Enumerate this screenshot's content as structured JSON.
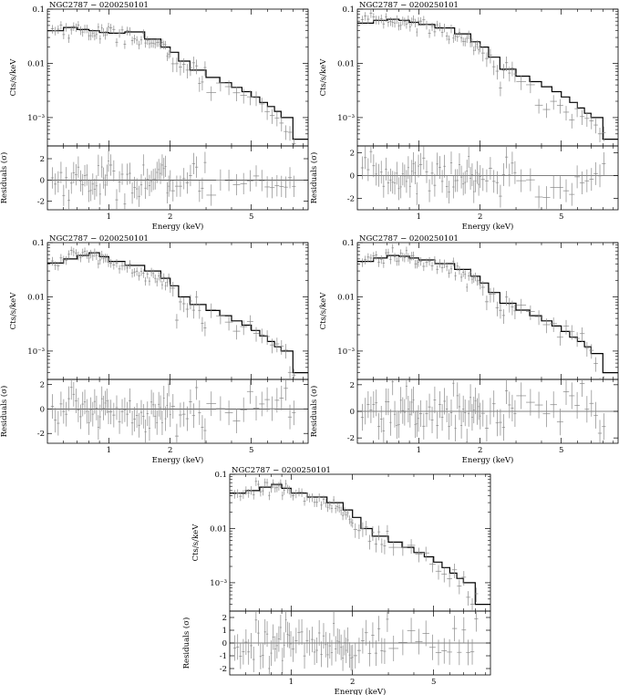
{
  "figure": {
    "panel_title": "NGC2787 − 0200250101",
    "xlabel": "Energy (keV)",
    "ylabel_top": "Cts/s/keV",
    "ylabel_bottom": "Residuals (σ)",
    "data_color": "#888888",
    "model_color": "#000000"
  },
  "chart_data": [
    {
      "type": "line",
      "title": "NGC2787 − 0200250101",
      "xlabel": "Energy (keV)",
      "ylabel": "Cts/s/keV",
      "xscale": "log",
      "yscale": "log",
      "xlim": [
        0.5,
        9.5
      ],
      "ylim": [
        0.0003,
        0.1
      ],
      "xticks": [
        1,
        2,
        5
      ],
      "yticks": [
        "0.1",
        "0.01",
        "10⁻³"
      ],
      "model": {
        "x": [
          0.5,
          0.6,
          0.7,
          0.8,
          0.9,
          1.0,
          1.2,
          1.5,
          1.8,
          2.0,
          2.2,
          2.5,
          3.0,
          3.5,
          4.0,
          4.5,
          5.0,
          5.5,
          6.0,
          6.5,
          7.0,
          8.0,
          9.5
        ],
        "y": [
          0.04,
          0.046,
          0.042,
          0.04,
          0.037,
          0.036,
          0.038,
          0.028,
          0.02,
          0.016,
          0.011,
          0.0075,
          0.0055,
          0.0044,
          0.0036,
          0.003,
          0.0024,
          0.0019,
          0.0016,
          0.0013,
          0.001,
          0.0004,
          0.0004
        ]
      },
      "residuals": {
        "ylabel": "Residuals (σ)",
        "ylim": [
          -2.8,
          3.2
        ],
        "yticks": [
          -2,
          0,
          2
        ]
      }
    },
    {
      "type": "line",
      "title": "NGC2787 − 0200250101",
      "xlabel": "Energy (keV)",
      "ylabel": "Cts/s/keV",
      "xscale": "log",
      "yscale": "log",
      "xlim": [
        0.5,
        9.5
      ],
      "ylim": [
        0.0003,
        0.1
      ],
      "xticks": [
        1,
        2,
        5
      ],
      "yticks": [
        "0.1",
        "0.01",
        "10⁻³"
      ],
      "model": {
        "x": [
          0.5,
          0.6,
          0.7,
          0.8,
          0.9,
          1.0,
          1.2,
          1.5,
          1.8,
          2.0,
          2.2,
          2.5,
          3.0,
          3.5,
          4.0,
          4.5,
          5.0,
          5.5,
          6.0,
          6.5,
          7.0,
          8.0,
          9.5
        ],
        "y": [
          0.055,
          0.062,
          0.065,
          0.062,
          0.057,
          0.052,
          0.045,
          0.035,
          0.025,
          0.02,
          0.013,
          0.0078,
          0.0058,
          0.0046,
          0.0037,
          0.003,
          0.0024,
          0.0019,
          0.0015,
          0.0012,
          0.001,
          0.0004,
          0.0004
        ]
      },
      "residuals": {
        "ylabel": "Residuals (σ)",
        "ylim": [
          -3.0,
          2.6
        ],
        "yticks": [
          -2,
          0,
          2
        ]
      }
    },
    {
      "type": "line",
      "title": "NGC2787 − 0200250101",
      "xlabel": "Energy (keV)",
      "ylabel": "Cts/s/keV",
      "xscale": "log",
      "yscale": "log",
      "xlim": [
        0.5,
        9.5
      ],
      "ylim": [
        0.0003,
        0.1
      ],
      "xticks": [
        1,
        2,
        5
      ],
      "yticks": [
        "0.1",
        "0.01",
        "10⁻³"
      ],
      "model": {
        "x": [
          0.5,
          0.6,
          0.7,
          0.8,
          0.9,
          1.0,
          1.2,
          1.5,
          1.8,
          2.0,
          2.2,
          2.5,
          3.0,
          3.5,
          4.0,
          4.5,
          5.0,
          5.5,
          6.0,
          6.5,
          7.0,
          8.0,
          9.5
        ],
        "y": [
          0.042,
          0.05,
          0.058,
          0.065,
          0.055,
          0.045,
          0.038,
          0.03,
          0.022,
          0.016,
          0.01,
          0.0072,
          0.0056,
          0.0045,
          0.0036,
          0.003,
          0.0024,
          0.0019,
          0.0015,
          0.0012,
          0.001,
          0.0004,
          0.0004
        ]
      },
      "residuals": {
        "ylabel": "Residuals (σ)",
        "ylim": [
          -2.8,
          2.4
        ],
        "yticks": [
          -2,
          0,
          2
        ]
      }
    },
    {
      "type": "line",
      "title": "NGC2787 − 0200250101",
      "xlabel": "Energy (keV)",
      "ylabel": "Cts/s/keV",
      "xscale": "log",
      "yscale": "log",
      "xlim": [
        0.5,
        9.5
      ],
      "ylim": [
        0.0003,
        0.1
      ],
      "xticks": [
        1,
        2,
        5
      ],
      "yticks": [
        "0.1",
        "0.01",
        "10⁻³"
      ],
      "model": {
        "x": [
          0.5,
          0.6,
          0.7,
          0.8,
          0.9,
          1.0,
          1.2,
          1.5,
          1.8,
          2.0,
          2.2,
          2.5,
          3.0,
          3.5,
          4.0,
          4.5,
          5.0,
          5.5,
          6.0,
          6.5,
          7.0,
          8.0,
          9.5
        ],
        "y": [
          0.045,
          0.052,
          0.058,
          0.056,
          0.052,
          0.048,
          0.041,
          0.032,
          0.024,
          0.018,
          0.012,
          0.0076,
          0.0057,
          0.0045,
          0.0036,
          0.0029,
          0.0023,
          0.0018,
          0.0015,
          0.0012,
          0.0009,
          0.0004,
          0.0004
        ]
      },
      "residuals": {
        "ylabel": "Residuals (σ)",
        "ylim": [
          -2.4,
          2.4
        ],
        "yticks": [
          -2,
          0,
          2
        ]
      }
    },
    {
      "type": "line",
      "title": "NGC2787 − 0200250101",
      "xlabel": "Energy (keV)",
      "ylabel": "Cts/s/keV",
      "xscale": "log",
      "yscale": "log",
      "xlim": [
        0.5,
        9.5
      ],
      "ylim": [
        0.0003,
        0.1
      ],
      "xticks": [
        1,
        2,
        5
      ],
      "yticks": [
        "0.1",
        "0.01",
        "10⁻³"
      ],
      "model": {
        "x": [
          0.5,
          0.6,
          0.7,
          0.8,
          0.9,
          1.0,
          1.2,
          1.5,
          1.8,
          2.0,
          2.2,
          2.5,
          3.0,
          3.5,
          4.0,
          4.5,
          5.0,
          5.5,
          6.0,
          6.5,
          7.0,
          8.0,
          9.5
        ],
        "y": [
          0.045,
          0.05,
          0.058,
          0.065,
          0.055,
          0.045,
          0.038,
          0.03,
          0.022,
          0.016,
          0.01,
          0.0072,
          0.0056,
          0.0045,
          0.0036,
          0.003,
          0.0024,
          0.0019,
          0.0015,
          0.0012,
          0.001,
          0.0004,
          0.0004
        ]
      },
      "residuals": {
        "ylabel": "Residuals (σ)",
        "ylim": [
          -2.5,
          2.5
        ],
        "yticks": [
          -2,
          -1,
          0,
          1,
          2
        ]
      }
    }
  ]
}
